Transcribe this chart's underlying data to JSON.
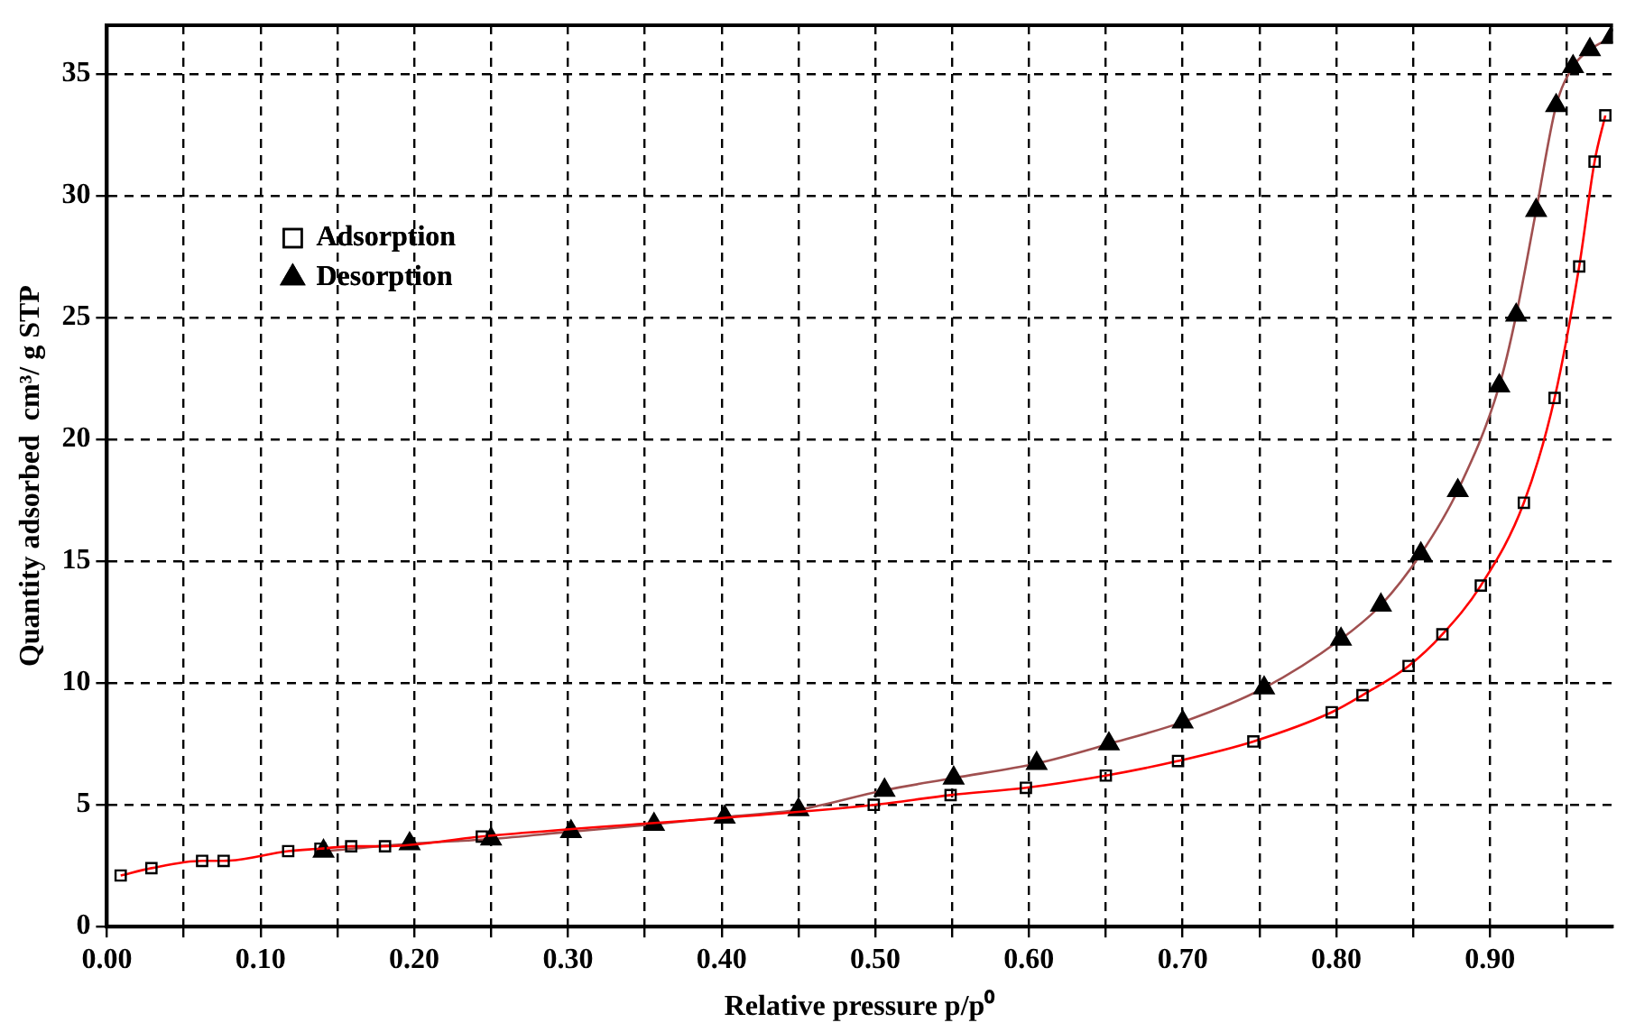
{
  "chart_data": {
    "type": "line",
    "xlabel": "Relative pressure p/p⁰",
    "ylabel": "Quantity adsorbed  cm³/ g STP",
    "xlim": [
      0,
      0.98
    ],
    "ylim": [
      0,
      37
    ],
    "xticks": [
      {
        "value": 0,
        "label": "0.00"
      },
      {
        "value": 0.05,
        "label": null
      },
      {
        "value": 0.1,
        "label": "0.10"
      },
      {
        "value": 0.15,
        "label": null
      },
      {
        "value": 0.2,
        "label": "0.20"
      },
      {
        "value": 0.25,
        "label": null
      },
      {
        "value": 0.3,
        "label": "0.30"
      },
      {
        "value": 0.35,
        "label": null
      },
      {
        "value": 0.4,
        "label": "0.40"
      },
      {
        "value": 0.45,
        "label": null
      },
      {
        "value": 0.5,
        "label": "0.50"
      },
      {
        "value": 0.55,
        "label": null
      },
      {
        "value": 0.6,
        "label": "0.60"
      },
      {
        "value": 0.65,
        "label": null
      },
      {
        "value": 0.7,
        "label": "0.70"
      },
      {
        "value": 0.75,
        "label": null
      },
      {
        "value": 0.8,
        "label": "0.80"
      },
      {
        "value": 0.85,
        "label": null
      },
      {
        "value": 0.9,
        "label": "0.90"
      },
      {
        "value": 0.95,
        "label": null
      }
    ],
    "yticks": [
      0,
      5,
      10,
      15,
      20,
      25,
      30,
      35
    ],
    "grid": true,
    "legend": "top left",
    "line_style": "solid",
    "series": [
      {
        "name": "Adsorption",
        "color": "#ff0000",
        "marker": "square",
        "x": [
          0.009,
          0.029,
          0.062,
          0.076,
          0.118,
          0.139,
          0.159,
          0.181,
          0.244,
          0.499,
          0.549,
          0.598,
          0.65,
          0.697,
          0.746,
          0.797,
          0.817,
          0.847,
          0.869,
          0.894,
          0.922,
          0.942,
          0.958,
          0.968,
          0.975
        ],
        "values": [
          2.1,
          2.4,
          2.7,
          2.7,
          3.1,
          3.2,
          3.3,
          3.3,
          3.7,
          5.0,
          5.4,
          5.7,
          6.2,
          6.8,
          7.6,
          8.8,
          9.5,
          10.7,
          12.0,
          14.0,
          17.4,
          21.7,
          27.1,
          31.4,
          33.3
        ]
      },
      {
        "name": "Desorption",
        "color": "#a05050",
        "marker": "triangle",
        "x": [
          0.141,
          0.197,
          0.25,
          0.302,
          0.356,
          0.402,
          0.45,
          0.506,
          0.551,
          0.605,
          0.652,
          0.7,
          0.753,
          0.803,
          0.829,
          0.855,
          0.879,
          0.906,
          0.917,
          0.93,
          0.943,
          0.954,
          0.965,
          0.979
        ],
        "values": [
          3.1,
          3.4,
          3.6,
          3.9,
          4.2,
          4.5,
          4.8,
          5.6,
          6.1,
          6.7,
          7.5,
          8.4,
          9.8,
          11.8,
          13.2,
          15.3,
          17.9,
          22.2,
          25.1,
          29.4,
          33.7,
          35.3,
          36.0,
          36.5
        ]
      }
    ]
  }
}
